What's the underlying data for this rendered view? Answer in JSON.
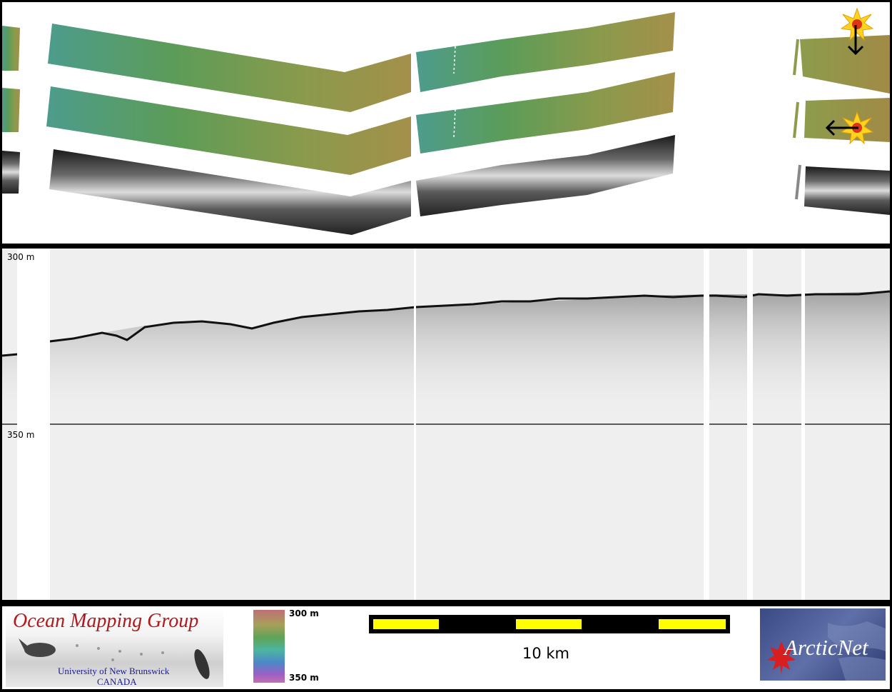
{
  "profile": {
    "depth_top": "300 m",
    "depth_mid": "350 m"
  },
  "legend": {
    "org_name": "Ocean Mapping Group",
    "university": "University of New Brunswick",
    "country": "CANADA",
    "colorbar_top": "300 m",
    "colorbar_bottom": "350 m",
    "scale_label": "10 km",
    "partner_logo_text": "ArcticNet"
  },
  "icons": {
    "sun_icon_1": "sun-burst-icon",
    "sun_icon_2": "sun-burst-icon",
    "arrow_down": "arrow-down-icon",
    "arrow_left": "arrow-left-icon"
  },
  "colors": {
    "swath_green": "#5c9c58",
    "swath_olive": "#9c9048",
    "swath_teal": "#4d9c8c",
    "scale_yellow": "#ffff00",
    "omg_red": "#b2191c",
    "omg_blue": "#1b1b8f",
    "arctic_blue": "#3a4a86"
  }
}
